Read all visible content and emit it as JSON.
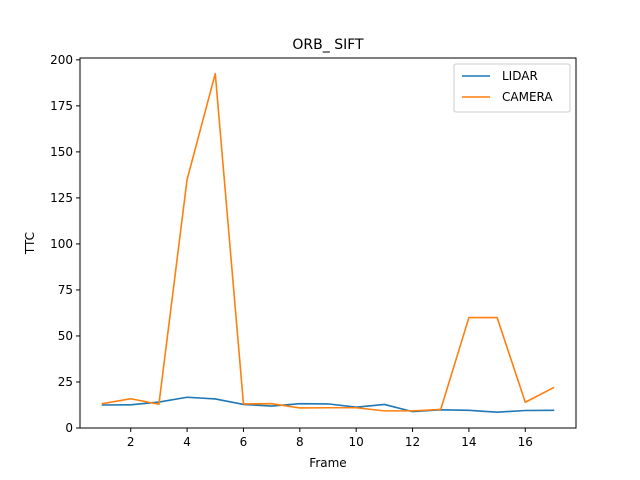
{
  "chart_data": {
    "type": "line",
    "title": "ORB_ SIFT",
    "xlabel": "Frame",
    "ylabel": "TTC",
    "x": [
      1,
      2,
      3,
      4,
      5,
      6,
      7,
      8,
      9,
      10,
      11,
      12,
      13,
      14,
      15,
      16,
      17
    ],
    "xlim": [
      0.2,
      17.8
    ],
    "ylim": [
      0,
      201
    ],
    "xticks": [
      2,
      4,
      6,
      8,
      10,
      12,
      14,
      16
    ],
    "yticks": [
      0,
      25,
      50,
      75,
      100,
      125,
      150,
      175,
      200
    ],
    "grid": false,
    "legend": "top-right",
    "series": [
      {
        "name": "LIDAR",
        "color": "#1f77b4",
        "values": [
          12.5,
          12.6,
          14.1,
          16.7,
          15.8,
          12.8,
          11.9,
          13.2,
          13.1,
          11.3,
          12.8,
          8.9,
          9.9,
          9.6,
          8.6,
          9.5,
          9.6
        ]
      },
      {
        "name": "CAMERA",
        "color": "#ff7f0e",
        "values": [
          13.2,
          15.9,
          12.9,
          135.0,
          192.5,
          13.1,
          13.2,
          10.9,
          11.0,
          11.0,
          9.3,
          9.3,
          10.1,
          60.0,
          60.0,
          14.0,
          21.9
        ]
      }
    ]
  }
}
